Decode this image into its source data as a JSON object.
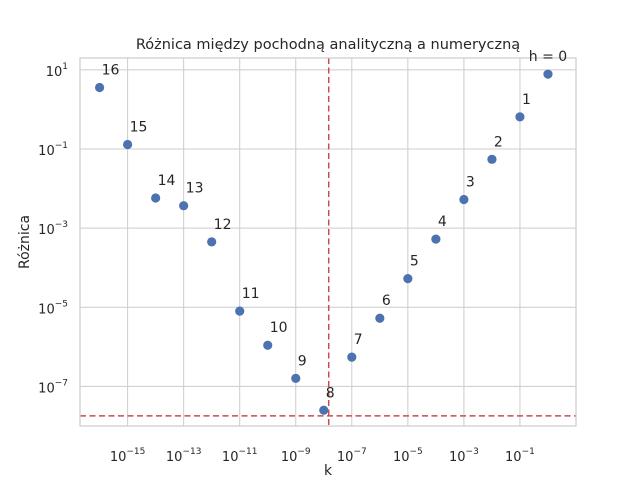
{
  "chart_data": {
    "type": "scatter",
    "title": "Różnica między pochodną analityczną a numeryczną",
    "xlabel": "k",
    "ylabel": "Różnica",
    "xscale": "log",
    "yscale": "log",
    "xlim": [
      2e-17,
      10
    ],
    "ylim": [
      1e-08,
      20
    ],
    "grid": true,
    "marker_color": "#4c72b0",
    "reference_line_color": "#c44e52",
    "x_ticks": [
      {
        "value": 1e-15,
        "base": "10",
        "exp": "−15"
      },
      {
        "value": 1e-13,
        "base": "10",
        "exp": "−13"
      },
      {
        "value": 1e-11,
        "base": "10",
        "exp": "−11"
      },
      {
        "value": 1e-09,
        "base": "10",
        "exp": "−9"
      },
      {
        "value": 1e-07,
        "base": "10",
        "exp": "−7"
      },
      {
        "value": 1e-05,
        "base": "10",
        "exp": "−5"
      },
      {
        "value": 0.001,
        "base": "10",
        "exp": "−3"
      },
      {
        "value": 0.1,
        "base": "10",
        "exp": "−1"
      }
    ],
    "y_ticks": [
      {
        "value": 10,
        "base": "10",
        "exp": "1"
      },
      {
        "value": 0.1,
        "base": "10",
        "exp": "−1"
      },
      {
        "value": 0.001,
        "base": "10",
        "exp": "−3"
      },
      {
        "value": 1e-05,
        "base": "10",
        "exp": "−5"
      },
      {
        "value": 1e-07,
        "base": "10",
        "exp": "−7"
      }
    ],
    "points": [
      {
        "label": "h = 0",
        "x": 1,
        "y": 7.8
      },
      {
        "label": "1",
        "x": 0.1,
        "y": 0.65
      },
      {
        "label": "2",
        "x": 0.01,
        "y": 0.055
      },
      {
        "label": "3",
        "x": 0.001,
        "y": 0.0053
      },
      {
        "label": "4",
        "x": 0.0001,
        "y": 0.00053
      },
      {
        "label": "5",
        "x": 1e-05,
        "y": 5.3e-05
      },
      {
        "label": "6",
        "x": 1e-06,
        "y": 5.3e-06
      },
      {
        "label": "7",
        "x": 1e-07,
        "y": 5.5e-07
      },
      {
        "label": "8",
        "x": 1e-08,
        "y": 2.5e-08
      },
      {
        "label": "9",
        "x": 1e-09,
        "y": 1.6e-07
      },
      {
        "label": "10",
        "x": 1e-10,
        "y": 1.1e-06
      },
      {
        "label": "11",
        "x": 1e-11,
        "y": 8e-06
      },
      {
        "label": "12",
        "x": 1e-12,
        "y": 0.00045
      },
      {
        "label": "13",
        "x": 1e-13,
        "y": 0.0037
      },
      {
        "label": "14",
        "x": 1e-14,
        "y": 0.0058
      },
      {
        "label": "15",
        "x": 1e-15,
        "y": 0.13
      },
      {
        "label": "16",
        "x": 1e-16,
        "y": 3.6
      }
    ],
    "reference_lines": [
      {
        "orientation": "vertical",
        "x": 1.5e-08
      },
      {
        "orientation": "horizontal",
        "y": 1.8e-08
      }
    ]
  }
}
